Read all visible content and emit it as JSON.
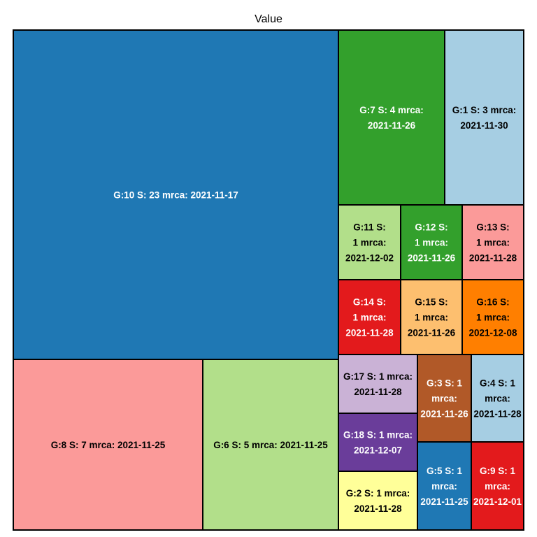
{
  "chart_data": {
    "type": "treemap",
    "title": "Value",
    "cells": [
      {
        "label": "G:10 S: 23 mrca: 2021-11-17",
        "lines": [
          "G:10 S: 23 mrca: 2021-11-17"
        ],
        "group": "10",
        "value": 23,
        "mrca": "2021-11-17",
        "color": "#1f78b4",
        "text_color": "#ffffff"
      },
      {
        "label": "G:8 S: 7 mrca: 2021-11-25",
        "lines": [
          "G:8 S: 7 mrca: 2021-11-25"
        ],
        "group": "8",
        "value": 7,
        "mrca": "2021-11-25",
        "color": "#fb9a99",
        "text_color": "#000000"
      },
      {
        "label": "G:6 S: 5 mrca: 2021-11-25",
        "lines": [
          "G:6 S: 5 mrca: 2021-11-25"
        ],
        "group": "6",
        "value": 5,
        "mrca": "2021-11-25",
        "color": "#b2df8a",
        "text_color": "#000000"
      },
      {
        "label": "G:7 S: 4 mrca: 2021-11-26",
        "lines": [
          "G:7 S: 4 mrca:",
          "2021-11-26"
        ],
        "group": "7",
        "value": 4,
        "mrca": "2021-11-26",
        "color": "#33a02c",
        "text_color": "#ffffff"
      },
      {
        "label": "G:1 S: 3 mrca: 2021-11-30",
        "lines": [
          "G:1 S: 3 mrca:",
          "2021-11-30"
        ],
        "group": "1",
        "value": 3,
        "mrca": "2021-11-30",
        "color": "#a6cee3",
        "text_color": "#000000"
      },
      {
        "label": "G:11 S: 1 mrca: 2021-12-02",
        "lines": [
          "G:11 S:",
          "1 mrca:",
          "2021-12-02"
        ],
        "group": "11",
        "value": 1,
        "mrca": "2021-12-02",
        "color": "#b2df8a",
        "text_color": "#000000"
      },
      {
        "label": "G:12 S: 1 mrca: 2021-11-26",
        "lines": [
          "G:12 S:",
          "1 mrca:",
          "2021-11-26"
        ],
        "group": "12",
        "value": 1,
        "mrca": "2021-11-26",
        "color": "#33a02c",
        "text_color": "#ffffff"
      },
      {
        "label": "G:13 S: 1 mrca: 2021-11-28",
        "lines": [
          "G:13 S:",
          "1 mrca:",
          "2021-11-28"
        ],
        "group": "13",
        "value": 1,
        "mrca": "2021-11-28",
        "color": "#fb9a99",
        "text_color": "#000000"
      },
      {
        "label": "G:14 S: 1 mrca: 2021-11-28",
        "lines": [
          "G:14 S:",
          "1 mrca:",
          "2021-11-28"
        ],
        "group": "14",
        "value": 1,
        "mrca": "2021-11-28",
        "color": "#e31a1c",
        "text_color": "#ffffff"
      },
      {
        "label": "G:15 S: 1 mrca: 2021-11-26",
        "lines": [
          "G:15 S:",
          "1 mrca:",
          "2021-11-26"
        ],
        "group": "15",
        "value": 1,
        "mrca": "2021-11-26",
        "color": "#fdbf6f",
        "text_color": "#000000"
      },
      {
        "label": "G:16 S: 1 mrca: 2021-12-08",
        "lines": [
          "G:16 S:",
          "1 mrca:",
          "2021-12-08"
        ],
        "group": "16",
        "value": 1,
        "mrca": "2021-12-08",
        "color": "#ff7f00",
        "text_color": "#000000"
      },
      {
        "label": "G:17 S: 1 mrca: 2021-11-28",
        "lines": [
          "G:17 S: 1 mrca:",
          "2021-11-28"
        ],
        "group": "17",
        "value": 1,
        "mrca": "2021-11-28",
        "color": "#cab2d6",
        "text_color": "#000000"
      },
      {
        "label": "G:18 S: 1 mrca: 2021-12-07",
        "lines": [
          "G:18 S: 1 mrca:",
          "2021-12-07"
        ],
        "group": "18",
        "value": 1,
        "mrca": "2021-12-07",
        "color": "#6a3d9a",
        "text_color": "#ffffff"
      },
      {
        "label": "G:2 S: 1 mrca: 2021-11-28",
        "lines": [
          "G:2 S: 1 mrca:",
          "2021-11-28"
        ],
        "group": "2",
        "value": 1,
        "mrca": "2021-11-28",
        "color": "#ffff99",
        "text_color": "#000000"
      },
      {
        "label": "G:3 S: 1 mrca: 2021-11-26",
        "lines": [
          "G:3 S: 1",
          "mrca:",
          "2021-11-26"
        ],
        "group": "3",
        "value": 1,
        "mrca": "2021-11-26",
        "color": "#b15928",
        "text_color": "#ffffff"
      },
      {
        "label": "G:4 S: 1 mrca: 2021-11-28",
        "lines": [
          "G:4 S: 1",
          "mrca:",
          "2021-11-28"
        ],
        "group": "4",
        "value": 1,
        "mrca": "2021-11-28",
        "color": "#a6cee3",
        "text_color": "#000000"
      },
      {
        "label": "G:5 S: 1 mrca: 2021-11-25",
        "lines": [
          "G:5 S: 1",
          "mrca:",
          "2021-11-25"
        ],
        "group": "5",
        "value": 1,
        "mrca": "2021-11-25",
        "color": "#1f78b4",
        "text_color": "#ffffff"
      },
      {
        "label": "G:9 S: 1 mrca: 2021-12-01",
        "lines": [
          "G:9 S: 1",
          "mrca:",
          "2021-12-01"
        ],
        "group": "9",
        "value": 1,
        "mrca": "2021-12-01",
        "color": "#e31a1c",
        "text_color": "#ffffff"
      }
    ]
  }
}
